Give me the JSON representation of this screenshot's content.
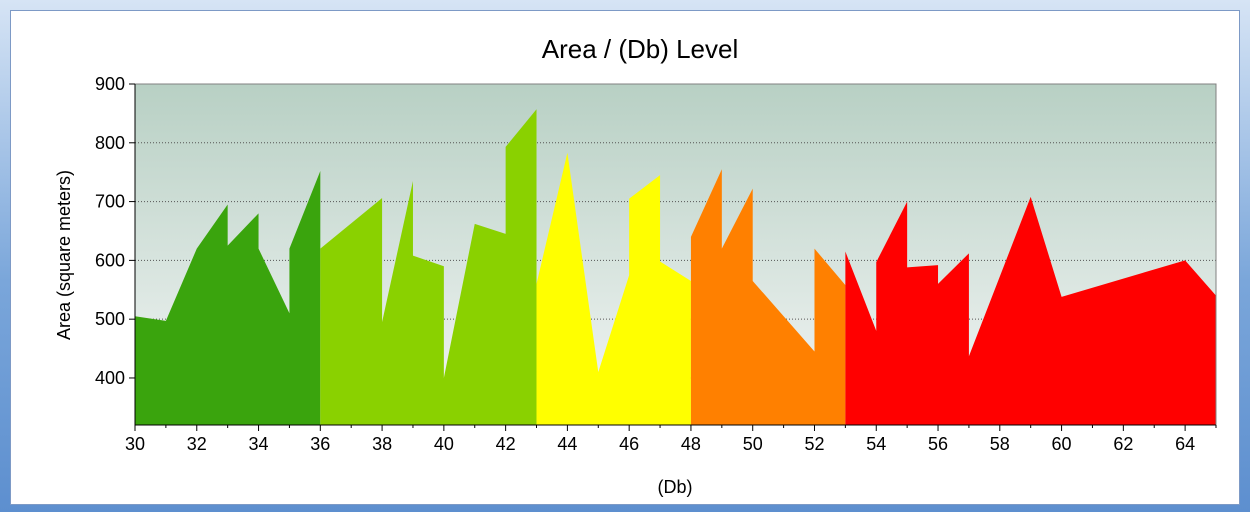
{
  "chart_data": {
    "type": "area",
    "title": "Area / (Db) Level",
    "xlabel": "(Db)",
    "ylabel": "Area (square meters)",
    "xlim": [
      30,
      65
    ],
    "ylim": [
      320,
      900
    ],
    "xticks": [
      30,
      32,
      34,
      36,
      38,
      40,
      42,
      44,
      46,
      48,
      50,
      52,
      54,
      56,
      58,
      60,
      62,
      64
    ],
    "yticks": [
      400,
      500,
      600,
      700,
      800,
      900
    ],
    "grid": true,
    "legend": "none",
    "x": [
      30,
      31,
      32,
      33,
      33,
      34,
      34,
      35,
      35,
      36,
      36,
      38,
      38,
      39,
      39,
      40,
      40,
      41,
      42,
      42,
      43,
      43,
      44,
      45,
      46,
      46,
      47,
      47,
      48,
      48,
      49,
      49,
      50,
      50,
      52,
      52,
      53,
      53,
      54,
      54,
      55,
      55,
      56,
      56,
      57,
      57,
      59,
      60,
      64,
      65
    ],
    "y": [
      505,
      497,
      620,
      695,
      625,
      680,
      620,
      510,
      620,
      752,
      620,
      706,
      495,
      735,
      608,
      590,
      400,
      662,
      645,
      793,
      857,
      560,
      783,
      410,
      575,
      705,
      745,
      598,
      565,
      640,
      755,
      620,
      722,
      565,
      445,
      620,
      558,
      615,
      480,
      597,
      700,
      588,
      592,
      560,
      612,
      437,
      708,
      538,
      600,
      540
    ],
    "bands": [
      {
        "from": 30,
        "to": 36,
        "color": "#3aa40d"
      },
      {
        "from": 36,
        "to": 43,
        "color": "#8ad100"
      },
      {
        "from": 43,
        "to": 48,
        "color": "#ffff00"
      },
      {
        "from": 48,
        "to": 53,
        "color": "#ff8000"
      },
      {
        "from": 53,
        "to": 65,
        "color": "#ff0000"
      }
    ]
  }
}
